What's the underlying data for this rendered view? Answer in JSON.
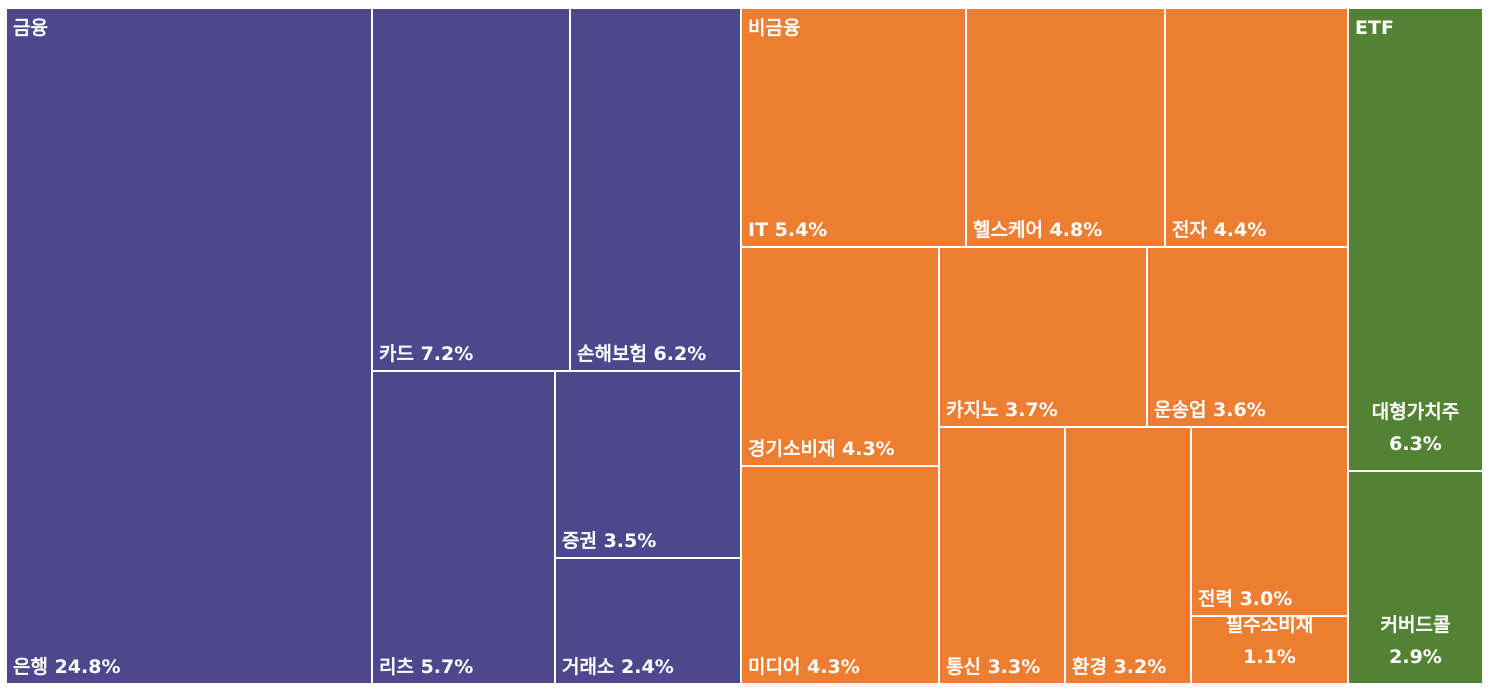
{
  "chart_data": {
    "type": "treemap",
    "unit": "%",
    "groups": [
      {
        "name": "금융",
        "color": "#4f478e",
        "items": [
          {
            "label": "은행",
            "value": 24.8
          },
          {
            "label": "카드",
            "value": 7.2
          },
          {
            "label": "손해보험",
            "value": 6.2
          },
          {
            "label": "리츠",
            "value": 5.7
          },
          {
            "label": "증권",
            "value": 3.5
          },
          {
            "label": "거래소",
            "value": 2.4
          }
        ]
      },
      {
        "name": "비금융",
        "color": "#ed7d31",
        "items": [
          {
            "label": "IT",
            "value": 5.4
          },
          {
            "label": "헬스케어",
            "value": 4.8
          },
          {
            "label": "전자",
            "value": 4.4
          },
          {
            "label": "경기소비재",
            "value": 4.3
          },
          {
            "label": "미디어",
            "value": 4.3
          },
          {
            "label": "카지노",
            "value": 3.7
          },
          {
            "label": "운송업",
            "value": 3.6
          },
          {
            "label": "통신",
            "value": 3.3
          },
          {
            "label": "환경",
            "value": 3.2
          },
          {
            "label": "전력",
            "value": 3.0
          },
          {
            "label": "필수소비재",
            "value": 1.1
          }
        ]
      },
      {
        "name": "ETF",
        "color": "#548235",
        "items": [
          {
            "label": "대형가치주",
            "value": 6.3
          },
          {
            "label": "커버드콜",
            "value": 2.9
          }
        ]
      }
    ]
  }
}
